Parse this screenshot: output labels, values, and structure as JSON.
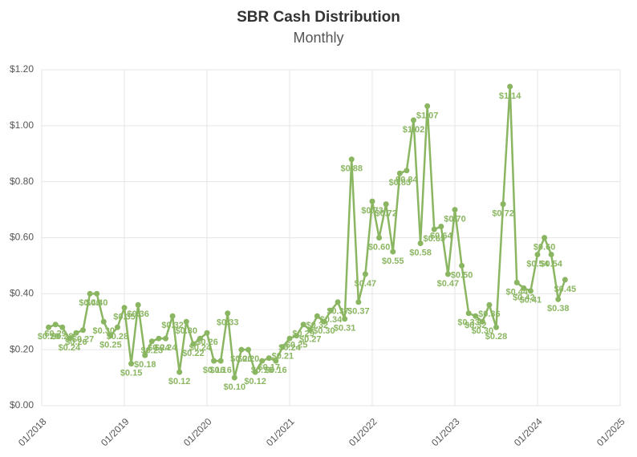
{
  "chart_data": {
    "type": "line",
    "title": "SBR Cash Distribution",
    "subtitle": "Monthly",
    "x": [
      "02/2018",
      "03/2018",
      "04/2018",
      "05/2018",
      "06/2018",
      "07/2018",
      "08/2018",
      "09/2018",
      "10/2018",
      "11/2018",
      "12/2018",
      "01/2019",
      "02/2019",
      "03/2019",
      "04/2019",
      "05/2019",
      "06/2019",
      "07/2019",
      "08/2019",
      "09/2019",
      "10/2019",
      "11/2019",
      "12/2019",
      "01/2020",
      "02/2020",
      "03/2020",
      "04/2020",
      "05/2020",
      "06/2020",
      "07/2020",
      "08/2020",
      "09/2020",
      "10/2020",
      "11/2020",
      "12/2020",
      "01/2021",
      "02/2021",
      "03/2021",
      "04/2021",
      "05/2021",
      "06/2021",
      "07/2021",
      "08/2021",
      "09/2021",
      "10/2021",
      "11/2021",
      "12/2021",
      "01/2022",
      "02/2022",
      "03/2022",
      "04/2022",
      "05/2022",
      "06/2022",
      "07/2022",
      "08/2022",
      "09/2022",
      "10/2022",
      "11/2022",
      "12/2022",
      "01/2023",
      "02/2023",
      "03/2023",
      "04/2023",
      "05/2023",
      "06/2023",
      "07/2023",
      "08/2023",
      "09/2023",
      "10/2023",
      "11/2023",
      "12/2023",
      "01/2024",
      "02/2024",
      "03/2024",
      "04/2024",
      "05/2024"
    ],
    "series": [
      {
        "name": "SBR",
        "color": "#8ab661",
        "values": [
          0.28,
          0.29,
          0.28,
          0.24,
          0.26,
          0.27,
          0.4,
          0.4,
          0.3,
          0.25,
          0.28,
          0.35,
          0.15,
          0.36,
          0.18,
          0.23,
          0.24,
          0.24,
          0.32,
          0.12,
          0.3,
          0.22,
          0.24,
          0.26,
          0.16,
          0.16,
          0.33,
          0.1,
          0.2,
          0.2,
          0.12,
          0.16,
          0.17,
          0.16,
          0.21,
          0.24,
          0.25,
          0.29,
          0.27,
          0.32,
          0.3,
          0.34,
          0.37,
          0.31,
          0.88,
          0.37,
          0.47,
          0.73,
          0.6,
          0.72,
          0.55,
          0.83,
          0.84,
          1.02,
          0.58,
          1.07,
          0.63,
          0.64,
          0.47,
          0.7,
          0.5,
          0.33,
          0.32,
          0.3,
          0.36,
          0.28,
          0.72,
          1.14,
          0.44,
          0.42,
          0.41,
          0.54,
          0.6,
          0.54,
          0.38,
          0.45
        ],
        "value_labels": [
          "$0.28",
          "$0.29",
          "$0.28",
          "$0.24",
          "$0.26",
          "$0.27",
          "$0.40",
          "$0.40",
          "$0.30",
          "$0.25",
          "$0.28",
          "$0.35",
          "$0.15",
          "$0.36",
          "$0.18",
          "$0.23",
          "$0.24",
          "$0.24",
          "$0.32",
          "$0.12",
          "$0.30",
          "$0.22",
          "$0.24",
          "$0.26",
          "$0.16",
          "$0.16",
          "$0.33",
          "$0.10",
          "$0.20",
          "$0.20",
          "$0.12",
          "$0.16",
          "$0.17",
          "$0.16",
          "$0.21",
          "$0.24",
          "$0.25",
          "$0.29",
          "$0.27",
          "$0.32",
          "$0.30",
          "$0.34",
          "$0.37",
          "$0.31",
          "$0.88",
          "$0.37",
          "$0.47",
          "$0.73",
          "$0.60",
          "$0.72",
          "$0.55",
          "$0.83",
          "$0.84",
          "$1.02",
          "$0.58",
          "$1.07",
          "$0.63",
          "$0.64",
          "$0.47",
          "$0.70",
          "$0.50",
          "$0.33",
          "$0.32",
          "$0.30",
          "$0.36",
          "$0.28",
          "$0.72",
          "$1.14",
          "$0.44",
          "$0.42",
          "$0.41",
          "$0.54",
          "$0.60",
          "$0.54",
          "$0.38",
          "$0.45"
        ]
      }
    ],
    "xlim": [
      "01/2018",
      "01/2025"
    ],
    "xticks": [
      "01/2018",
      "01/2019",
      "01/2020",
      "01/2021",
      "01/2022",
      "01/2023",
      "01/2024",
      "01/2025"
    ],
    "ylim": [
      0,
      1.2
    ],
    "yticks": [
      {
        "value": 0,
        "label": "$0.00"
      },
      {
        "value": 0.2,
        "label": "$0.20"
      },
      {
        "value": 0.4,
        "label": "$0.40"
      },
      {
        "value": 0.6,
        "label": "$0.60"
      },
      {
        "value": 0.8,
        "label": "$0.80"
      },
      {
        "value": 1.0,
        "label": "$1.00"
      },
      {
        "value": 1.2,
        "label": "$1.20"
      }
    ],
    "grid": true
  }
}
